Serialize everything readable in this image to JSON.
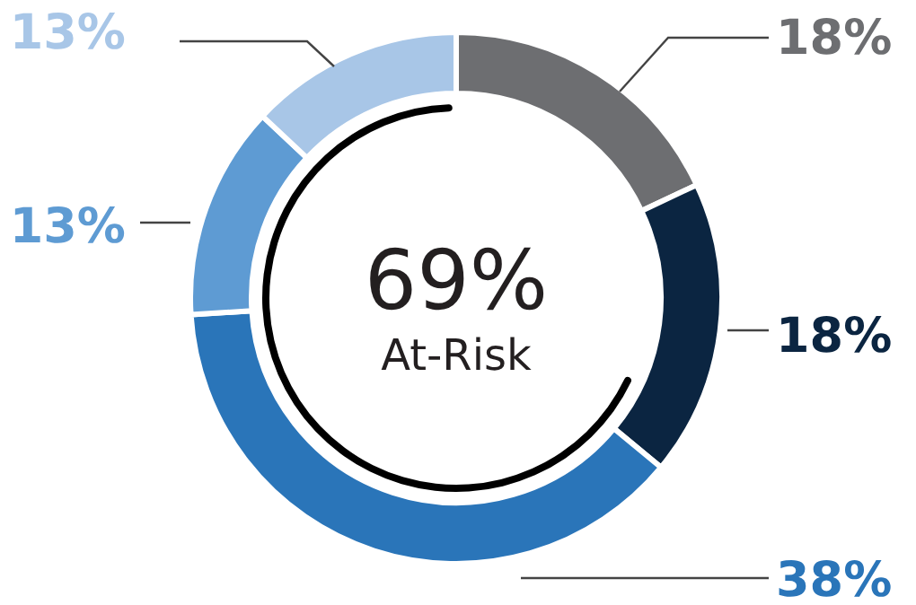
{
  "chart_data": {
    "type": "donut",
    "categories": [
      null,
      null,
      null,
      null,
      null
    ],
    "values": [
      18,
      18,
      38,
      13,
      13
    ],
    "value_labels": [
      "18%",
      "18%",
      "38%",
      "13%",
      "13%"
    ],
    "colors": [
      "#6d6e71",
      "#0b2541",
      "#2a75b9",
      "#5e9bd3",
      "#a8c6e7"
    ],
    "annotations": [
      "69%",
      "At-Risk"
    ]
  }
}
